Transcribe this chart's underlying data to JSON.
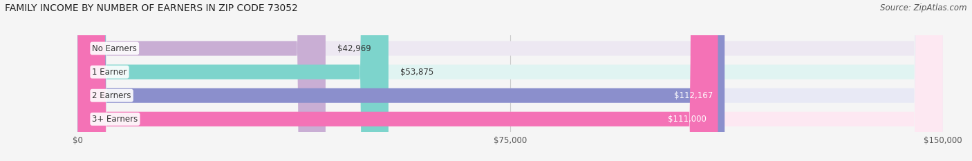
{
  "title": "FAMILY INCOME BY NUMBER OF EARNERS IN ZIP CODE 73052",
  "source": "Source: ZipAtlas.com",
  "categories": [
    "No Earners",
    "1 Earner",
    "2 Earners",
    "3+ Earners"
  ],
  "values": [
    42969,
    53875,
    112167,
    111000
  ],
  "bar_colors": [
    "#c9aed4",
    "#7dd4cc",
    "#8b8fcc",
    "#f472b6"
  ],
  "bg_colors": [
    "#ede8f2",
    "#e0f4f2",
    "#e8e9f5",
    "#fde8f2"
  ],
  "value_labels": [
    "$42,969",
    "$53,875",
    "$112,167",
    "$111,000"
  ],
  "xmax": 150000,
  "xtick_labels": [
    "$0",
    "$75,000",
    "$150,000"
  ],
  "background_color": "#f5f5f5",
  "title_fontsize": 10,
  "source_fontsize": 8.5,
  "label_fontsize": 8.5,
  "value_fontsize": 8.5
}
